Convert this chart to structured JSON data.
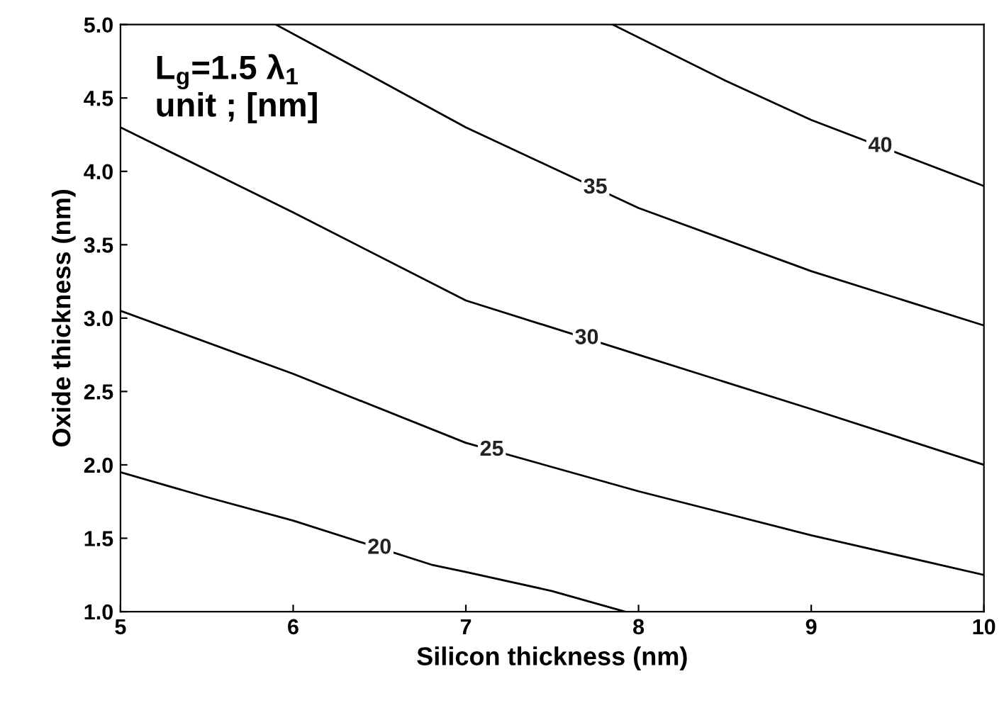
{
  "chart_data": {
    "type": "line",
    "xlabel": "Silicon thickness (nm)",
    "ylabel": "Oxide thickness (nm)",
    "annotations": [
      "L$_{g}$=1.5 λ$_{1}$\nunit ; [nm]"
    ],
    "series": [
      {
        "name": "20",
        "color": "#000000",
        "x": [
          5,
          5.5,
          6,
          6.8,
          7,
          7.5,
          7.92
        ],
        "values": [
          1.95,
          1.78,
          1.62,
          1.32,
          1.27,
          1.14,
          1.0
        ]
      },
      {
        "name": "25",
        "color": "#000000",
        "x": [
          5,
          6,
          7,
          8,
          9,
          10
        ],
        "values": [
          3.05,
          2.62,
          2.15,
          1.82,
          1.52,
          1.25
        ]
      },
      {
        "name": "30",
        "color": "#000000",
        "x": [
          5,
          6,
          7,
          8,
          9,
          10
        ],
        "values": [
          4.3,
          3.72,
          3.12,
          2.75,
          2.38,
          2.0
        ]
      },
      {
        "name": "35",
        "color": "#000000",
        "x": [
          5.9,
          6.5,
          7,
          8,
          9,
          10
        ],
        "values": [
          5.0,
          4.62,
          4.3,
          3.75,
          3.32,
          2.95
        ]
      },
      {
        "name": "40",
        "color": "#000000",
        "x": [
          7.85,
          8.5,
          9,
          10
        ],
        "values": [
          5.0,
          4.62,
          4.35,
          3.9
        ]
      }
    ],
    "xlim": [
      5,
      10
    ],
    "xticks": [
      5,
      6,
      7,
      8,
      9,
      10
    ],
    "ylim": [
      1.0,
      5.0
    ],
    "yticks": [
      {
        "value": 1,
        "label": "1.0"
      },
      {
        "value": 1.5,
        "label": "1.5"
      },
      {
        "value": 2,
        "label": "2.0"
      },
      {
        "value": 2.5,
        "label": "2.5"
      },
      {
        "value": 3,
        "label": "3.0"
      },
      {
        "value": 3.5,
        "label": "3.5"
      },
      {
        "value": 4,
        "label": "4.0"
      },
      {
        "value": 4.5,
        "label": "4.5"
      },
      {
        "value": 5,
        "label": "5.0"
      }
    ],
    "grid": false,
    "legend": false,
    "marker": "none",
    "line_style": "solid"
  }
}
